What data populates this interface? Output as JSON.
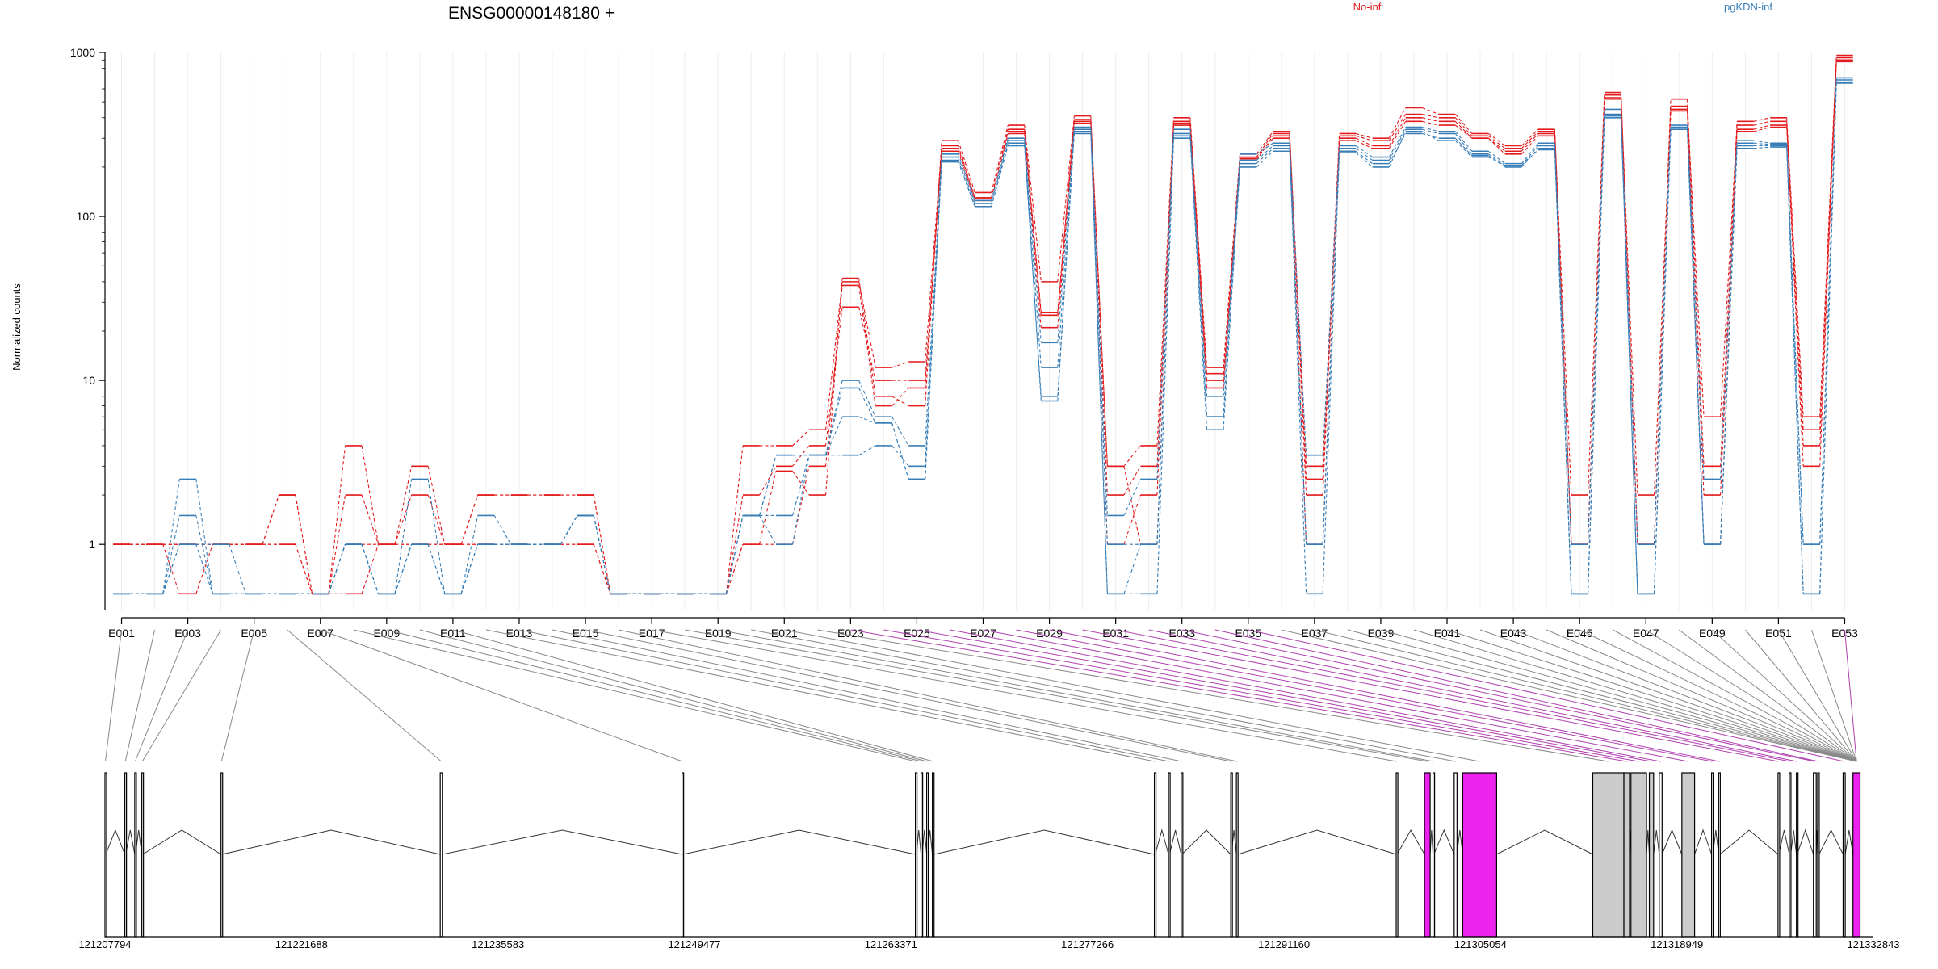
{
  "chart_data": {
    "type": "line",
    "title": "ENSG00000148180 +",
    "ylabel": "Normalized counts",
    "xlabel": "",
    "yscale": "log",
    "ylim": [
      0.4,
      1000
    ],
    "yticks": [
      1,
      10,
      100,
      1000
    ],
    "ytick_labels": [
      "1",
      "10",
      "100",
      "1000"
    ],
    "grid": "vertical",
    "legend_placement": "top",
    "legend": [
      {
        "name": "No-inf",
        "color": "#e41a1c"
      },
      {
        "name": "pgKDN-inf",
        "color": "#377eb8"
      }
    ],
    "exons": [
      "E001",
      "E002",
      "E003",
      "E004",
      "E005",
      "E006",
      "E007",
      "E008",
      "E009",
      "E010",
      "E011",
      "E012",
      "E013",
      "E014",
      "E015",
      "E016",
      "E017",
      "E018",
      "E019",
      "E020",
      "E021",
      "E022",
      "E023",
      "E024",
      "E025",
      "E026",
      "E027",
      "E028",
      "E029",
      "E030",
      "E031",
      "E032",
      "E033",
      "E034",
      "E035",
      "E036",
      "E037",
      "E038",
      "E039",
      "E040",
      "E041",
      "E042",
      "E043",
      "E044",
      "E045",
      "E046",
      "E047",
      "E048",
      "E049",
      "E050",
      "E051",
      "E052",
      "E053"
    ],
    "exon_tick_labels": [
      "E001",
      "E003",
      "E005",
      "E007",
      "E009",
      "E011",
      "E013",
      "E015",
      "E017",
      "E019",
      "E021",
      "E023",
      "E025",
      "E027",
      "E029",
      "E031",
      "E033",
      "E035",
      "E037",
      "E039",
      "E041",
      "E043",
      "E045",
      "E047",
      "E049",
      "E051",
      "E053"
    ],
    "series": [
      {
        "name": "No-inf",
        "color": "#e41a1c",
        "replicate": 1,
        "values": [
          1,
          1,
          0.5,
          1,
          1,
          1,
          0.5,
          0.5,
          1,
          1,
          1,
          1,
          1,
          1,
          1,
          0.5,
          0.5,
          0.5,
          0.5,
          1,
          2.8,
          2.0,
          42,
          8,
          7,
          290,
          140,
          360,
          40,
          410,
          3.0,
          4.0,
          400,
          12,
          240,
          330,
          2.0,
          320,
          300,
          460,
          420,
          320,
          270,
          340,
          1.0,
          570,
          1.0,
          520,
          3.0,
          380,
          400,
          6.0,
          960
        ]
      },
      {
        "name": "No-inf",
        "color": "#e41a1c",
        "replicate": 2,
        "values": [
          1,
          1,
          1,
          1,
          1,
          2,
          0.5,
          4,
          1,
          2,
          1,
          2,
          2,
          2,
          2,
          0.5,
          0.5,
          0.5,
          0.5,
          4,
          4,
          5,
          40,
          12,
          13,
          270,
          130,
          340,
          26,
          390,
          3.0,
          1.0,
          380,
          11,
          230,
          320,
          3.0,
          310,
          290,
          420,
          400,
          310,
          260,
          330,
          2.0,
          550,
          2.0,
          470,
          6.0,
          360,
          380,
          5.0,
          930
        ]
      },
      {
        "name": "No-inf",
        "color": "#e41a1c",
        "replicate": 3,
        "values": [
          1,
          1,
          1,
          1,
          1,
          2,
          0.5,
          2,
          1,
          3,
          1,
          2,
          2,
          2,
          2,
          0.5,
          0.5,
          0.5,
          0.5,
          2,
          3,
          4,
          28,
          10,
          10,
          250,
          125,
          320,
          21,
          370,
          1.0,
          2.0,
          360,
          9,
          220,
          310,
          1.0,
          300,
          270,
          400,
          380,
          300,
          250,
          320,
          1.0,
          520,
          1.0,
          440,
          1.0,
          340,
          360,
          3.0,
          900
        ]
      },
      {
        "name": "No-inf",
        "color": "#e41a1c",
        "replicate": 4,
        "values": [
          1,
          1,
          1,
          1,
          1,
          1,
          0.5,
          1,
          1,
          1,
          1,
          1,
          1,
          1,
          1,
          0.5,
          0.5,
          0.5,
          0.5,
          1,
          1,
          3,
          38,
          7,
          9,
          260,
          130,
          330,
          25,
          380,
          2.0,
          3.0,
          370,
          10,
          225,
          300,
          2.5,
          290,
          260,
          380,
          360,
          300,
          240,
          310,
          1.0,
          530,
          1.0,
          450,
          2.0,
          330,
          350,
          4.0,
          880
        ]
      },
      {
        "name": "pgKDN-inf",
        "color": "#377eb8",
        "replicate": 1,
        "values": [
          0.5,
          0.5,
          2.5,
          0.5,
          0.5,
          0.5,
          0.5,
          1,
          0.5,
          2.5,
          0.5,
          1,
          1,
          1,
          1.5,
          0.5,
          0.5,
          0.5,
          0.5,
          1.5,
          3.5,
          3.5,
          10,
          6,
          4,
          240,
          125,
          300,
          17,
          350,
          1.5,
          2.5,
          340,
          6,
          240,
          280,
          3.5,
          270,
          230,
          350,
          330,
          250,
          210,
          280,
          0.5,
          450,
          0.5,
          360,
          2.5,
          290,
          280,
          1.0,
          700
        ]
      },
      {
        "name": "pgKDN-inf",
        "color": "#377eb8",
        "replicate": 2,
        "values": [
          0.5,
          0.5,
          1.5,
          0.5,
          0.5,
          0.5,
          0.5,
          1,
          0.5,
          1,
          0.5,
          1.5,
          1,
          1,
          1.5,
          0.5,
          0.5,
          0.5,
          0.5,
          1.5,
          1.5,
          3.5,
          6,
          5.5,
          2.5,
          230,
          120,
          290,
          12,
          340,
          1,
          1,
          320,
          8,
          220,
          270,
          1,
          260,
          220,
          340,
          320,
          240,
          205,
          270,
          1,
          420,
          1,
          350,
          1,
          280,
          275,
          1,
          680
        ]
      },
      {
        "name": "pgKDN-inf",
        "color": "#377eb8",
        "replicate": 3,
        "values": [
          0.5,
          0.5,
          1,
          1,
          0.5,
          0.5,
          0.5,
          1,
          0.5,
          1,
          0.5,
          1,
          1,
          1,
          1.5,
          0.5,
          0.5,
          0.5,
          0.5,
          1.5,
          1,
          3.5,
          3.5,
          4,
          3,
          220,
          115,
          270,
          8,
          320,
          0.5,
          0.5,
          300,
          5,
          210,
          260,
          0.5,
          250,
          210,
          320,
          300,
          235,
          200,
          260,
          0.5,
          400,
          0.5,
          340,
          1,
          270,
          270,
          0.5,
          660
        ]
      },
      {
        "name": "pgKDN-inf",
        "color": "#377eb8",
        "replicate": 4,
        "values": [
          0.5,
          0.5,
          1,
          0.5,
          0.5,
          0.5,
          0.5,
          1,
          0.5,
          1,
          0.5,
          1,
          1,
          1,
          1.5,
          0.5,
          0.5,
          0.5,
          0.5,
          1.5,
          3.5,
          3.5,
          9,
          5.5,
          2.5,
          215,
          115,
          280,
          7.5,
          330,
          0.5,
          1,
          310,
          6,
          200,
          250,
          1,
          245,
          200,
          330,
          290,
          230,
          205,
          255,
          0.5,
          410,
          0.5,
          340,
          1,
          260,
          265,
          0.5,
          650
        ]
      }
    ],
    "genomic_axis": {
      "tick_labels": [
        "121207794",
        "121221688",
        "121235583",
        "121249477",
        "121263371",
        "121277266",
        "121291160",
        "121305054",
        "121318949",
        "121332843"
      ],
      "min": 121207794,
      "max": 121332843
    },
    "gene_model": {
      "exon_starts": [
        121207794,
        121209200,
        121209900,
        121210400,
        121216000,
        121231500,
        121248600,
        121265100,
        121265500,
        121265900,
        121266300,
        121282000,
        121283000,
        121283900,
        121287400,
        121287800,
        121299100,
        121301100,
        121301700,
        121303200,
        121303800,
        121313000,
        121315200,
        121315700,
        121317000,
        121317700,
        121319300,
        121321400,
        121321900,
        121326100,
        121326900,
        121327400,
        121328600,
        121328900,
        121330700,
        121331400
      ],
      "exon_ends": [
        121207850,
        121209260,
        121209950,
        121210460,
        121216060,
        121231650,
        121248660,
        121265170,
        121265580,
        121265960,
        121266420,
        121282060,
        121283070,
        121283950,
        121287450,
        121287900,
        121299160,
        121301500,
        121301760,
        121303400,
        121306200,
        121315200,
        121315600,
        121316800,
        121317300,
        121317900,
        121320200,
        121321500,
        121322000,
        121326160,
        121327000,
        121327460,
        121328800,
        121329000,
        121330850,
        121331900
      ],
      "exon_colors": [
        "#ffffff",
        "#ffffff",
        "#ffffff",
        "#ffffff",
        "#ffffff",
        "#ffffff",
        "#ffffff",
        "#ffffff",
        "#ffffff",
        "#ffffff",
        "#ffffff",
        "#ffffff",
        "#ffffff",
        "#ffffff",
        "#ffffff",
        "#ffffff",
        "#ffffff",
        "#ee22ee",
        "#ffffff",
        "#ffffff",
        "#ee22ee",
        "#cccccc",
        "#cccccc",
        "#cccccc",
        "#cccccc",
        "#ffffff",
        "#cccccc",
        "#ffffff",
        "#ffffff",
        "#ffffff",
        "#ffffff",
        "#ffffff",
        "#ffffff",
        "#ffffff",
        "#ffffff",
        "#ee22ee"
      ],
      "highlight_color": "#ee22ee",
      "highlighted_exons": [
        "E023",
        "E024",
        "E025",
        "E026",
        "E027",
        "E028",
        "E029",
        "E030",
        "E031",
        "E032",
        "E033",
        "E034",
        "E035",
        "E053"
      ]
    }
  }
}
